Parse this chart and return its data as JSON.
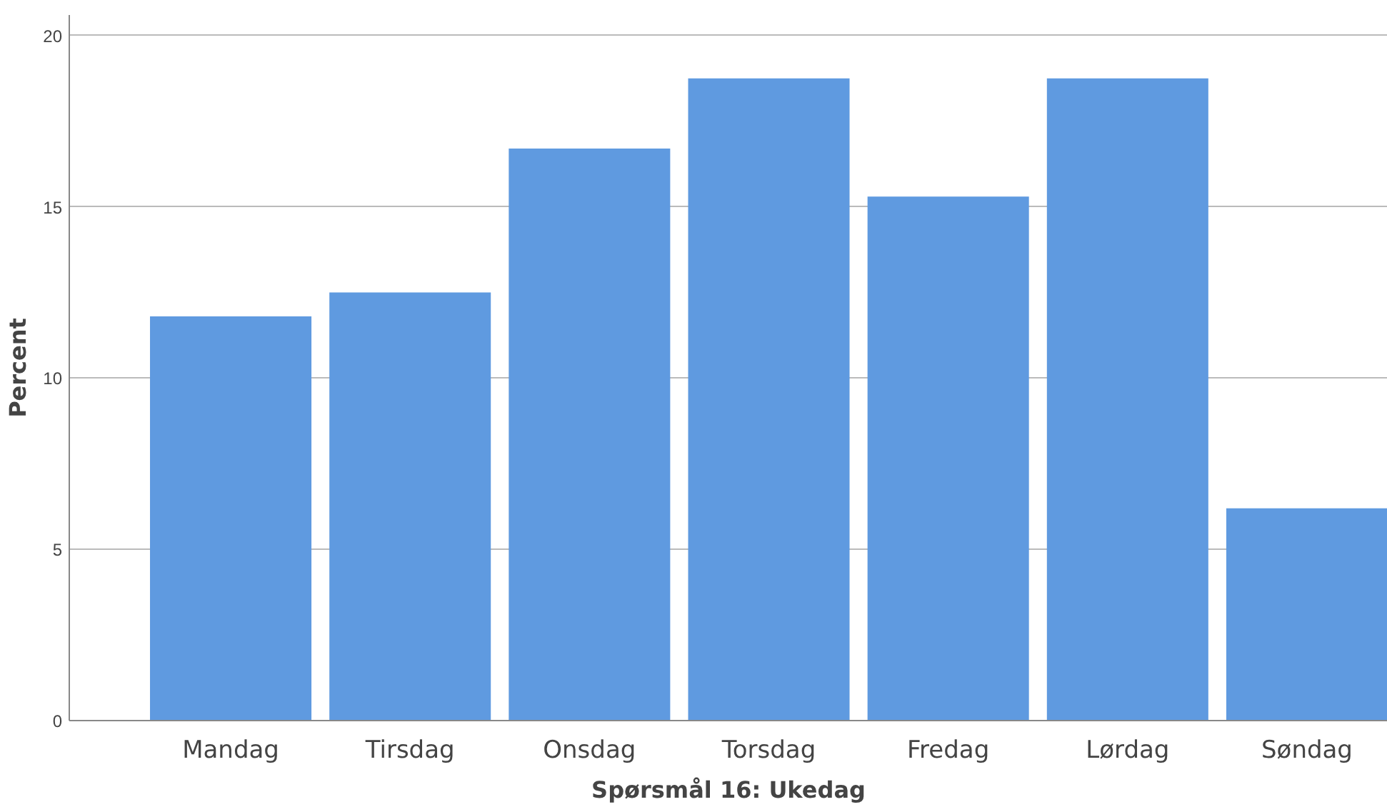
{
  "chart_data": {
    "type": "bar",
    "xlabel": "Spørsmål 16: Ukedag",
    "ylabel": "Percent",
    "categories": [
      "Mandag",
      "Tirsdag",
      "Onsdag",
      "Torsdag",
      "Fredag",
      "Lørdag",
      "Søndag"
    ],
    "values": [
      11.8,
      12.5,
      16.7,
      18.75,
      15.3,
      18.75,
      6.2
    ],
    "color": "#5f9ae0",
    "ylim": [
      0,
      20.6
    ],
    "yticks": [
      0,
      5,
      10,
      15,
      20
    ],
    "grid": "y"
  }
}
